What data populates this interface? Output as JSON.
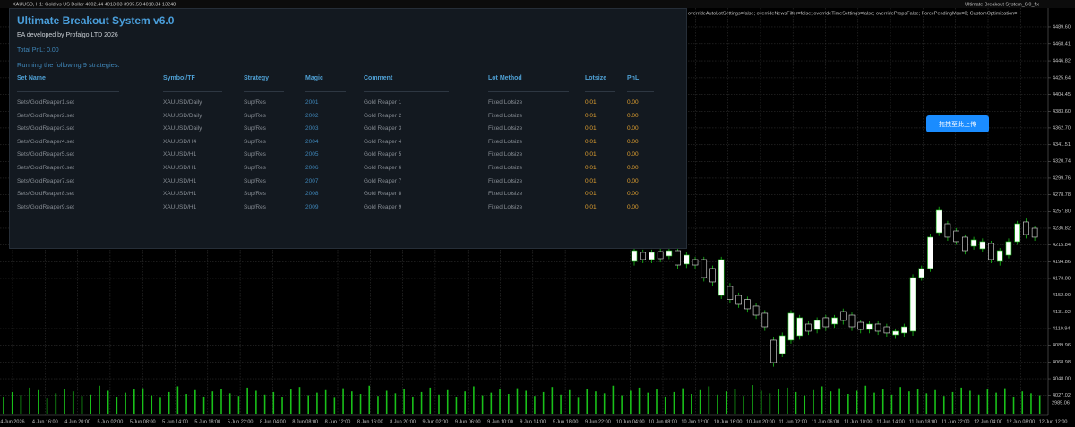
{
  "top_bar": {
    "symbol_info": "XAUUSD, H1: Gold vs US Dollar 4002.44 4013.03 3995.59 4010.34 13248",
    "params": "overrideAutoLotSettings=false; overrideNewsFilter=false; overrideTimeSettings=false; overridePropsFalse; ForcePendingMax=0; CustomOptimization=",
    "ea_name": "Ultimate Breakout System_6.0_fix"
  },
  "panel": {
    "title": "Ultimate Breakout System v6.0",
    "subtitle": "EA developed by Profalgo LTD 2026",
    "total_pnl": "Total PnL: 0.00",
    "running": "Running the following 9 strategies:",
    "columns": [
      "Set Name",
      "Symbol/TF",
      "Strategy",
      "Magic",
      "Comment",
      "Lot Method",
      "Lotsize",
      "PnL"
    ],
    "rows": [
      [
        "Sets\\GoldReaper1.set",
        "XAUUSD/Daily",
        "Sup/Res",
        "2001",
        "Gold Reaper 1",
        "Fixed Lotsize",
        "0.01",
        "0.00"
      ],
      [
        "Sets\\GoldReaper2.set",
        "XAUUSD/Daily",
        "Sup/Res",
        "2002",
        "Gold Reaper 2",
        "Fixed Lotsize",
        "0.01",
        "0.00"
      ],
      [
        "Sets\\GoldReaper3.set",
        "XAUUSD/Daily",
        "Sup/Res",
        "2003",
        "Gold Reaper 3",
        "Fixed Lotsize",
        "0.01",
        "0.00"
      ],
      [
        "Sets\\GoldReaper4.set",
        "XAUUSD/H4",
        "Sup/Res",
        "2004",
        "Gold Reaper 4",
        "Fixed Lotsize",
        "0.01",
        "0.00"
      ],
      [
        "Sets\\GoldReaper5.set",
        "XAUUSD/H1",
        "Sup/Res",
        "2005",
        "Gold Reaper 5",
        "Fixed Lotsize",
        "0.01",
        "0.00"
      ],
      [
        "Sets\\GoldReaper6.set",
        "XAUUSD/H1",
        "Sup/Res",
        "2006",
        "Gold Reaper 6",
        "Fixed Lotsize",
        "0.01",
        "0.00"
      ],
      [
        "Sets\\GoldReaper7.set",
        "XAUUSD/H1",
        "Sup/Res",
        "2007",
        "Gold Reaper 7",
        "Fixed Lotsize",
        "0.01",
        "0.00"
      ],
      [
        "Sets\\GoldReaper8.set",
        "XAUUSD/H1",
        "Sup/Res",
        "2008",
        "Gold Reaper 8",
        "Fixed Lotsize",
        "0.01",
        "0.00"
      ],
      [
        "Sets\\GoldReaper9.set",
        "XAUUSD/H1",
        "Sup/Res",
        "2009",
        "Gold Reaper 9",
        "Fixed Lotsize",
        "0.01",
        "0.00"
      ]
    ]
  },
  "upload_button": "拖拽至此上传",
  "chart_data": {
    "type": "candlestick",
    "grid": true,
    "ylim": [
      4017.7,
      4505.3
    ],
    "yticks": [
      {
        "value": 4489.6,
        "label": "4489.60"
      },
      {
        "value": 4468.41,
        "label": "4468.41"
      },
      {
        "value": 4446.82,
        "label": "4446.82"
      },
      {
        "value": 4425.64,
        "label": "4425.64"
      },
      {
        "value": 4404.45,
        "label": "4404.45"
      },
      {
        "value": 4383.6,
        "label": "4383.60"
      },
      {
        "value": 4362.7,
        "label": "4362.70"
      },
      {
        "value": 4341.51,
        "label": "4341.51"
      },
      {
        "value": 4320.74,
        "label": "4320.74"
      },
      {
        "value": 4299.76,
        "label": "4299.76"
      },
      {
        "value": 4278.78,
        "label": "4278.78"
      },
      {
        "value": 4257.8,
        "label": "4257.80"
      },
      {
        "value": 4236.82,
        "label": "4236.82"
      },
      {
        "value": 4215.84,
        "label": "4215.84"
      },
      {
        "value": 4194.86,
        "label": "4194.86"
      },
      {
        "value": 4173.88,
        "label": "4173.88"
      },
      {
        "value": 4152.9,
        "label": "4152.90"
      },
      {
        "value": 4131.92,
        "label": "4131.92"
      },
      {
        "value": 4110.94,
        "label": "4110.94"
      },
      {
        "value": 4089.96,
        "label": "4089.96"
      },
      {
        "value": 4068.98,
        "label": "4068.98"
      },
      {
        "value": 4048,
        "label": "4048.00"
      },
      {
        "value": 4027.02,
        "label": "4027.02"
      }
    ],
    "time_labels": [
      "4 Jun 2026",
      "4 Jun 16:00",
      "4 Jun 20:00",
      "5 Jun 02:00",
      "5 Jun 08:00",
      "5 Jun 14:00",
      "5 Jun 18:00",
      "5 Jun 22:00",
      "8 Jun 04:00",
      "8 Jun 08:00",
      "8 Jun 12:00",
      "8 Jun 16:00",
      "8 Jun 20:00",
      "9 Jun 02:00",
      "9 Jun 06:00",
      "9 Jun 10:00",
      "9 Jun 14:00",
      "9 Jun 18:00",
      "9 Jun 22:00",
      "10 Jun 04:00",
      "10 Jun 08:00",
      "10 Jun 12:00",
      "10 Jun 16:00",
      "10 Jun 20:00",
      "11 Jun 02:00",
      "11 Jun 06:00",
      "11 Jun 10:00",
      "11 Jun 14:00",
      "11 Jun 18:00",
      "11 Jun 22:00",
      "12 Jun 04:00",
      "12 Jun 08:00",
      "12 Jun 12:00"
    ],
    "candles": {
      "open": [
        4195.2,
        4206.5,
        4197.5,
        4207.6,
        4202.0,
        4208.7,
        4191.9,
        4197.5,
        4197.5,
        4186.3,
        4152.5,
        4163.8,
        4152.5,
        4147.3,
        4139.1,
        4130.1,
        4096.4,
        4079.5,
        4096.4,
        4102.0,
        4116.6,
        4109.8,
        4124.5,
        4116.6,
        4132.3,
        4127.8,
        4118.8,
        4109.8,
        4116.6,
        4113.2,
        4103.1,
        4105.4,
        4107.6,
        4175.0,
        4186.3,
        4231.2,
        4242.4,
        4233.4,
        4225.6,
        4214.3,
        4211.0,
        4217.7,
        4195.2,
        4203.1,
        4220.0,
        4244.7,
        4236.8
      ],
      "high": [
        4212.0,
        4210.0,
        4210.0,
        4211.0,
        4212.0,
        4212.0,
        4207.0,
        4201.0,
        4201.0,
        4190.0,
        4201.0,
        4168.0,
        4156.0,
        4151.0,
        4143.0,
        4134.0,
        4100.0,
        4106.0,
        4134.0,
        4128.0,
        4120.0,
        4125.0,
        4128.0,
        4128.0,
        4136.0,
        4131.0,
        4122.0,
        4120.0,
        4120.0,
        4117.0,
        4111.0,
        4117.0,
        4179.0,
        4190.0,
        4230.0,
        4264.0,
        4246.0,
        4237.0,
        4229.0,
        4226.0,
        4224.0,
        4221.0,
        4212.0,
        4224.0,
        4246.0,
        4249.0,
        4240.0
      ],
      "low": [
        4190.0,
        4193.0,
        4193.0,
        4194.0,
        4198.0,
        4186.0,
        4187.0,
        4186.0,
        4170.0,
        4164.0,
        4148.0,
        4143.0,
        4137.0,
        4131.0,
        4123.0,
        4108.0,
        4063.0,
        4075.0,
        4092.0,
        4097.0,
        4103.0,
        4105.0,
        4108.0,
        4112.0,
        4116.0,
        4108.0,
        4105.0,
        4105.0,
        4103.0,
        4100.0,
        4098.0,
        4100.0,
        4102.0,
        4171.0,
        4182.0,
        4227.0,
        4221.0,
        4216.0,
        4204.0,
        4210.0,
        4207.0,
        4193.0,
        4190.0,
        4199.0,
        4216.0,
        4224.0,
        4221.0
      ],
      "close": [
        4208.7,
        4197.5,
        4206.5,
        4198.6,
        4208.7,
        4190.7,
        4203.1,
        4190.7,
        4175.0,
        4169.4,
        4197.5,
        4147.3,
        4141.3,
        4135.7,
        4127.8,
        4113.2,
        4068.3,
        4102.0,
        4130.1,
        4124.5,
        4107.6,
        4121.1,
        4113.2,
        4124.5,
        4121.1,
        4113.2,
        4109.8,
        4116.6,
        4107.6,
        4105.4,
        4107.6,
        4113.2,
        4175.0,
        4186.3,
        4225.6,
        4259.3,
        4225.6,
        4220.0,
        4208.7,
        4222.2,
        4220.0,
        4197.5,
        4208.7,
        4220.0,
        4242.4,
        4228.9,
        4225.6
      ]
    },
    "volume_label": "2985.06",
    "vlim": [
      0,
      60
    ],
    "volume": [
      28,
      35,
      30,
      42,
      38,
      25,
      33,
      40,
      36,
      29,
      31,
      45,
      37,
      27,
      34,
      39,
      41,
      30,
      26,
      35,
      44,
      32,
      38,
      28,
      36,
      40,
      33,
      29,
      42,
      37,
      31,
      35,
      27,
      39,
      43,
      30,
      34,
      38,
      26,
      41,
      36,
      32,
      45,
      29,
      37,
      33,
      40,
      28,
      35,
      42,
      31,
      38,
      27,
      36,
      44,
      30,
      34,
      39,
      32,
      41,
      37,
      29,
      35,
      43,
      31,
      38,
      26,
      40,
      36,
      33,
      45,
      30,
      37,
      42,
      34,
      39,
      28,
      35,
      41,
      32,
      38,
      44,
      31,
      36,
      40,
      29,
      46,
      37,
      33,
      39,
      42,
      35,
      30,
      38,
      44,
      36,
      41,
      32,
      37,
      45,
      34,
      39,
      31,
      43,
      36,
      40,
      33,
      38,
      29,
      35,
      42,
      37,
      31,
      39,
      34,
      41,
      28,
      36,
      33,
      30
    ]
  }
}
